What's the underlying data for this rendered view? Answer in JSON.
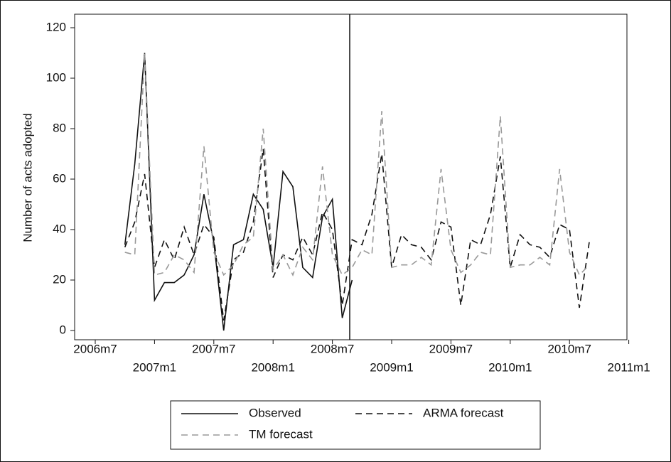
{
  "chart_data": {
    "type": "line",
    "y_label": "Number of acts adopted",
    "categories": [
      "2006m7",
      null,
      null,
      null,
      null,
      null,
      "2007m1",
      null,
      null,
      null,
      null,
      null,
      "2007m7",
      null,
      null,
      null,
      null,
      null,
      "2008m1",
      null,
      null,
      null,
      null,
      null,
      "2008m7",
      null,
      null,
      null,
      null,
      null,
      "2009m1",
      null,
      null,
      null,
      null,
      null,
      "2009m7",
      null,
      null,
      null,
      null,
      null,
      "2010m1",
      null,
      null,
      null,
      null,
      null,
      "2010m7",
      null,
      null,
      null,
      null,
      null,
      "2011m1"
    ],
    "series": [
      {
        "name": "Observed",
        "color": "#111111",
        "dash": "solid",
        "values": [
          null,
          null,
          null,
          34,
          66,
          110,
          12,
          19,
          19,
          22,
          30,
          54,
          35,
          0,
          34,
          36,
          54,
          48,
          25,
          63,
          57,
          25,
          21,
          45,
          52,
          5,
          20,
          null,
          null,
          null,
          null,
          null,
          null,
          null,
          null,
          null,
          null,
          null,
          null,
          null,
          null,
          null,
          null,
          null,
          null,
          null,
          null,
          null,
          null,
          null,
          null,
          null,
          null,
          null,
          null
        ]
      },
      {
        "name": "ARMA forecast",
        "color": "#111111",
        "dash": "dashed",
        "values": [
          null,
          null,
          null,
          33,
          43,
          62,
          25,
          36,
          28,
          41,
          30,
          42,
          37,
          4,
          28,
          31,
          43,
          72,
          21,
          30,
          28,
          37,
          30,
          47,
          40,
          10,
          36,
          34,
          46,
          70,
          25,
          38,
          34,
          33,
          28,
          43,
          41,
          10,
          36,
          34,
          46,
          69,
          25,
          38,
          34,
          33,
          29,
          42,
          40,
          9,
          35,
          null,
          null,
          null,
          null
        ]
      },
      {
        "name": "TM forecast",
        "color": "#999999",
        "dash": "dashed",
        "values": [
          null,
          null,
          null,
          31,
          30,
          110,
          22,
          23,
          30,
          28,
          23,
          73,
          31,
          22,
          26,
          34,
          37,
          80,
          24,
          30,
          22,
          33,
          28,
          65,
          30,
          22,
          25,
          32,
          30,
          87,
          25,
          26,
          26,
          29,
          26,
          64,
          32,
          23,
          26,
          31,
          30,
          85,
          25,
          26,
          26,
          29,
          26,
          64,
          31,
          22,
          26,
          null,
          null,
          null,
          null
        ]
      }
    ],
    "ylim": [
      0,
      120
    ],
    "yticks": [
      0,
      20,
      40,
      60,
      80,
      100,
      120
    ]
  }
}
